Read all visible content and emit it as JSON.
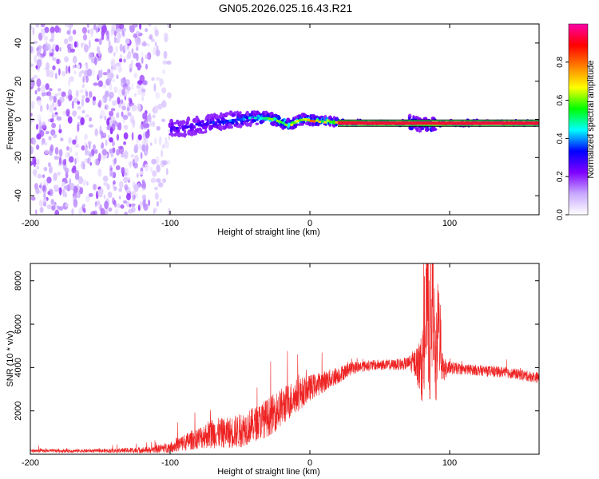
{
  "page_title": "GN05.2026.025.16.43.R21",
  "chart_data": [
    {
      "type": "heatmap",
      "title": "GN05.2026.025.16.43.R21",
      "xlabel": "Height of straight line (km)",
      "ylabel": "Frequency (Hz)",
      "xlim": [
        -200,
        164
      ],
      "ylim": [
        -50,
        50
      ],
      "x_ticks": [
        -200,
        -100,
        0,
        100
      ],
      "y_ticks": [
        -40,
        -20,
        0,
        20,
        40
      ],
      "colorbar": {
        "label": "Normalized spectral amplitude",
        "range": [
          0,
          1
        ],
        "ticks": [
          0.0,
          0.2,
          0.4,
          0.6,
          0.8
        ],
        "tick_labels": [
          "0.0",
          "0.2",
          "0.4",
          "0.6",
          "0.8"
        ],
        "colors": [
          "#ffffff",
          "#c8a8ff",
          "#7f00ff",
          "#0000ff",
          "#00ffff",
          "#00ff00",
          "#ffff00",
          "#ff8000",
          "#ff0000",
          "#ff00aa"
        ]
      },
      "regions": [
        {
          "name": "noise",
          "x_range": [
            -200,
            -115
          ],
          "y_range": [
            -50,
            50
          ],
          "amplitude": 0.1
        },
        {
          "name": "noise-fade",
          "x_range": [
            -115,
            -100
          ],
          "y_range": [
            -50,
            50
          ],
          "amplitude": 0.05
        }
      ],
      "ridge": [
        {
          "x": -100,
          "y": -5,
          "amp": 0.3
        },
        {
          "x": -80,
          "y": -3,
          "amp": 0.35
        },
        {
          "x": -60,
          "y": -1,
          "amp": 0.4
        },
        {
          "x": -40,
          "y": 1,
          "amp": 0.55
        },
        {
          "x": -25,
          "y": 0,
          "amp": 0.7
        },
        {
          "x": -15,
          "y": -3,
          "amp": 0.75
        },
        {
          "x": -5,
          "y": 0,
          "amp": 0.8
        },
        {
          "x": 10,
          "y": -1,
          "amp": 0.85
        },
        {
          "x": 40,
          "y": -2,
          "amp": 0.9
        },
        {
          "x": 65,
          "y": -2,
          "amp": 0.9
        },
        {
          "x": 75,
          "y": -2,
          "amp": 0.6
        },
        {
          "x": 85,
          "y": -3,
          "amp": 0.6
        },
        {
          "x": 100,
          "y": -2,
          "amp": 0.95
        },
        {
          "x": 164,
          "y": -2,
          "amp": 0.95
        }
      ]
    },
    {
      "type": "line",
      "xlabel": "Height of straight line (km)",
      "ylabel": "SNR (10 * v/v)",
      "xlim": [
        -200,
        164
      ],
      "ylim": [
        0,
        8800
      ],
      "x_ticks": [
        -200,
        -100,
        0,
        100
      ],
      "y_ticks": [
        2000,
        4000,
        6000,
        8000
      ],
      "series": [
        {
          "name": "SNR",
          "color": "#ee2222",
          "x": [
            -200,
            -150,
            -115,
            -100,
            -90,
            -80,
            -70,
            -60,
            -50,
            -40,
            -30,
            -20,
            -10,
            0,
            10,
            20,
            30,
            40,
            50,
            60,
            70,
            75,
            80,
            82,
            84,
            86,
            88,
            90,
            92,
            95,
            100,
            110,
            120,
            130,
            140,
            150,
            164
          ],
          "values": [
            150,
            150,
            180,
            300,
            500,
            700,
            900,
            900,
            1000,
            1300,
            1600,
            2100,
            2600,
            3000,
            3300,
            3600,
            3950,
            4050,
            4100,
            4100,
            4150,
            4200,
            3800,
            4600,
            7000,
            5000,
            7500,
            3500,
            6000,
            3800,
            3950,
            3900,
            3850,
            3800,
            3750,
            3650,
            3500
          ],
          "noise": [
            80,
            80,
            150,
            250,
            400,
            500,
            700,
            700,
            800,
            800,
            900,
            900,
            800,
            600,
            500,
            400,
            300,
            250,
            250,
            250,
            300,
            600,
            1500,
            2500,
            3000,
            3500,
            3000,
            2000,
            2500,
            600,
            300,
            250,
            250,
            250,
            250,
            250,
            250
          ]
        }
      ]
    }
  ]
}
